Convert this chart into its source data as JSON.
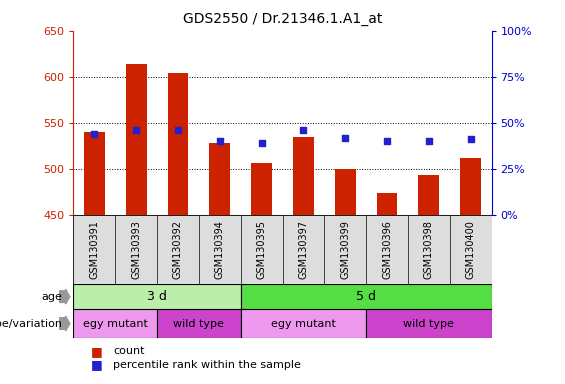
{
  "title": "GDS2550 / Dr.21346.1.A1_at",
  "samples": [
    "GSM130391",
    "GSM130393",
    "GSM130392",
    "GSM130394",
    "GSM130395",
    "GSM130397",
    "GSM130399",
    "GSM130396",
    "GSM130398",
    "GSM130400"
  ],
  "counts": [
    540,
    614,
    604,
    528,
    507,
    535,
    500,
    474,
    493,
    512
  ],
  "percentile_ranks": [
    44,
    46,
    46,
    40,
    39,
    46,
    42,
    40,
    40,
    41
  ],
  "ymin": 450,
  "ymax": 650,
  "yticks": [
    450,
    500,
    550,
    600,
    650
  ],
  "y2min": 0,
  "y2max": 100,
  "y2ticks": [
    0,
    25,
    50,
    75,
    100
  ],
  "y2ticklabels": [
    "0%",
    "25%",
    "50%",
    "75%",
    "100%"
  ],
  "bar_color": "#CC2200",
  "dot_color": "#2222CC",
  "bar_width": 0.5,
  "age_groups": [
    {
      "label": "3 d",
      "start": 0,
      "end": 4,
      "color": "#BBEEAA"
    },
    {
      "label": "5 d",
      "start": 4,
      "end": 10,
      "color": "#55DD44"
    }
  ],
  "geno_groups": [
    {
      "label": "egy mutant",
      "start": 0,
      "end": 2,
      "color": "#EE99EE"
    },
    {
      "label": "wild type",
      "start": 2,
      "end": 4,
      "color": "#CC44CC"
    },
    {
      "label": "egy mutant",
      "start": 4,
      "end": 7,
      "color": "#EE99EE"
    },
    {
      "label": "wild type",
      "start": 7,
      "end": 10,
      "color": "#CC44CC"
    }
  ],
  "row_label_age": "age",
  "row_label_genotype": "genotype/variation",
  "legend_count_label": "count",
  "legend_percentile_label": "percentile rank within the sample",
  "bar_color_legend": "#CC2200",
  "dot_color_legend": "#2222CC",
  "left_axis_color": "#CC2200",
  "right_axis_color": "#0000CC",
  "title_fontsize": 10,
  "tick_fontsize": 8,
  "sample_fontsize": 7,
  "annotation_fontsize": 9
}
